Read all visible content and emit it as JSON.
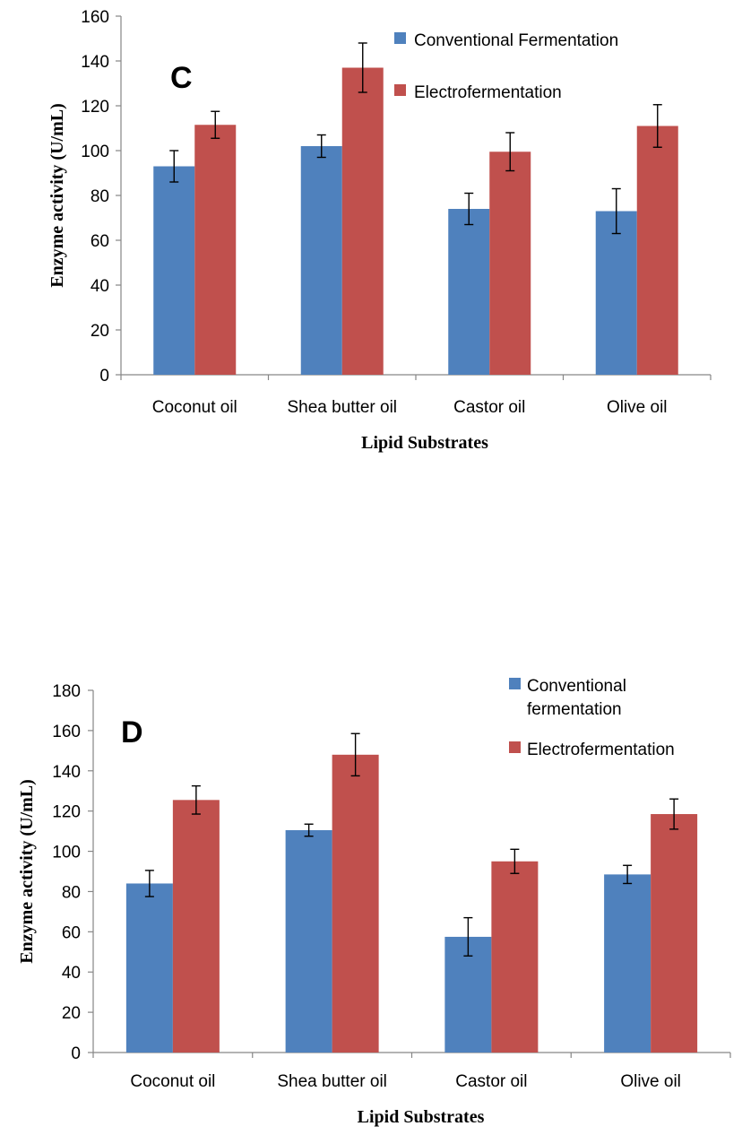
{
  "chart_data": [
    {
      "type": "bar",
      "panel_label": "C",
      "xlabel": "Lipid Substrates",
      "ylabel": "Enzyme activity (U/mL)",
      "ylim": [
        0,
        160
      ],
      "yticks": [
        0,
        20,
        40,
        60,
        80,
        100,
        120,
        140,
        160
      ],
      "categories": [
        "Coconut oil",
        "Shea butter oil",
        "Castor oil",
        "Olive oil"
      ],
      "legend_position": "top-right",
      "series": [
        {
          "name": "Conventional Fermentation",
          "color": "#4F81BD",
          "values": [
            93,
            102,
            74,
            73
          ],
          "errors": [
            7,
            5,
            7,
            10
          ]
        },
        {
          "name": "Electrofermentation",
          "color": "#C0504D",
          "values": [
            111.5,
            137,
            99.5,
            111
          ],
          "errors": [
            6,
            11,
            8.5,
            9.5
          ]
        }
      ]
    },
    {
      "type": "bar",
      "panel_label": "D",
      "xlabel": "Lipid Substrates",
      "ylabel": "Enzyme activity (U/mL)",
      "ylim": [
        0,
        180
      ],
      "yticks": [
        0,
        20,
        40,
        60,
        80,
        100,
        120,
        140,
        160,
        180
      ],
      "categories": [
        "Coconut oil",
        "Shea butter oil",
        "Castor oil",
        "Olive oil"
      ],
      "legend_position": "top-right",
      "series": [
        {
          "name": "Conventional fermentation",
          "name_lines": [
            "Conventional",
            "fermentation"
          ],
          "color": "#4F81BD",
          "values": [
            84,
            110.5,
            57.5,
            88.5
          ],
          "errors": [
            6.5,
            3,
            9.5,
            4.5
          ]
        },
        {
          "name": "Electrofermentation",
          "color": "#C0504D",
          "values": [
            125.5,
            148,
            95,
            118.5
          ],
          "errors": [
            7,
            10.5,
            6,
            7.5
          ]
        }
      ]
    }
  ]
}
